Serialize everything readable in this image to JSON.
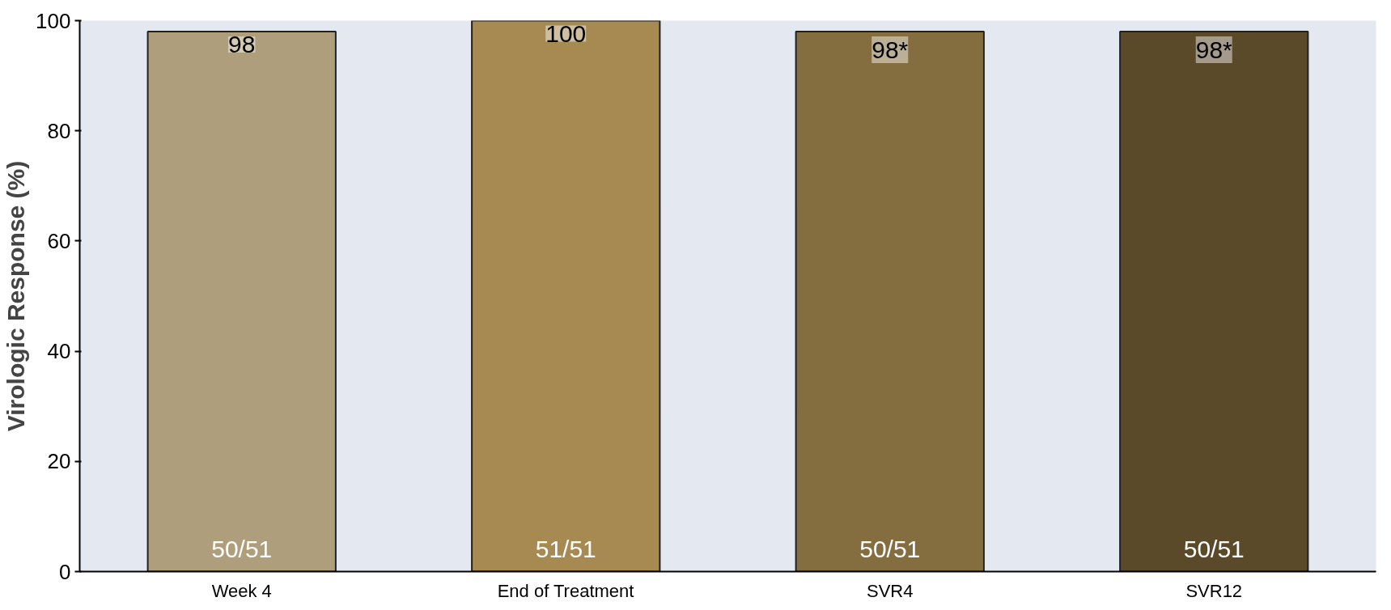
{
  "chart_data": {
    "type": "bar",
    "ylabel": "Virologic Response (%)",
    "categories": [
      "Week 4",
      "End of Treatment",
      "SVR4",
      "SVR12"
    ],
    "values": [
      98,
      100,
      98,
      98
    ],
    "value_labels": [
      "98",
      "100",
      "98*",
      "98*"
    ],
    "colors": [
      "#ae9e7c",
      "#a68a52",
      "#846e40",
      "#5a4a2a"
    ],
    "ylim": [
      0,
      100
    ],
    "yticks": [
      0,
      20,
      40,
      60,
      80,
      100
    ],
    "grid": false,
    "annotations": [
      "50/51",
      "51/51",
      "50/51",
      "50/51"
    ]
  }
}
